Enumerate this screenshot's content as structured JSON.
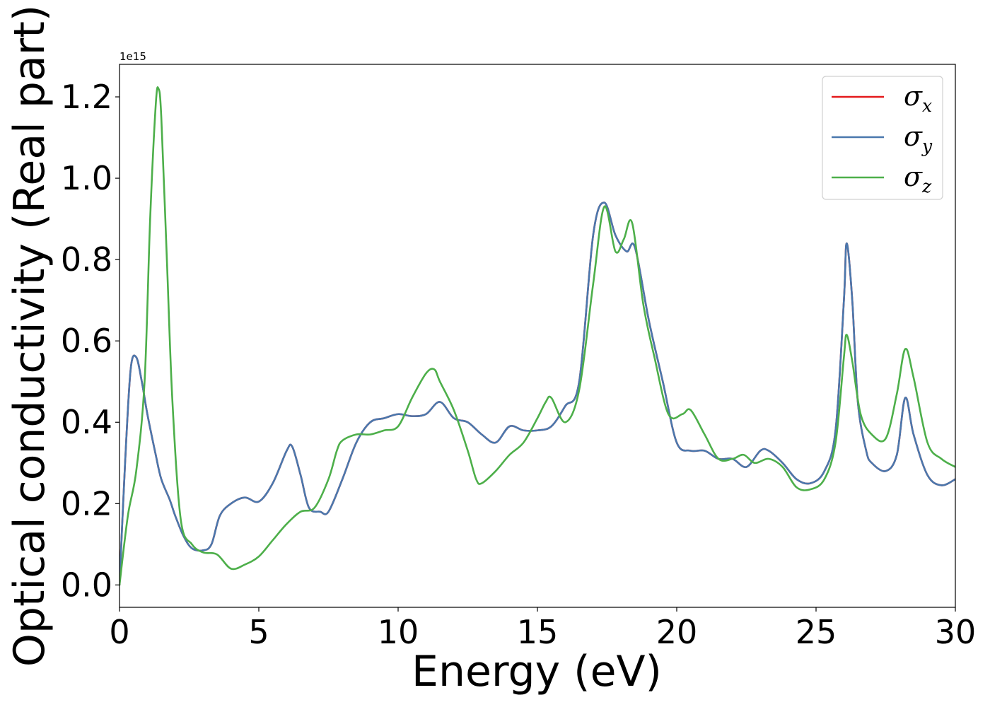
{
  "chart_data": {
    "type": "line",
    "xlabel": "Energy (eV)",
    "ylabel": "Optical conductivity (Real part)",
    "y_offset_label": "1e15",
    "xlim": [
      0,
      30
    ],
    "ylim": [
      -0.055,
      1.28
    ],
    "x_ticks": [
      0,
      5,
      10,
      15,
      20,
      25,
      30
    ],
    "x_tick_labels": [
      "0",
      "5",
      "10",
      "15",
      "20",
      "25",
      "30"
    ],
    "y_ticks": [
      0.0,
      0.2,
      0.4,
      0.6,
      0.8,
      1.0,
      1.2
    ],
    "y_tick_labels": [
      "0.0",
      "0.2",
      "0.4",
      "0.6",
      "0.8",
      "1.0",
      "1.2"
    ],
    "grid": false,
    "legend_position": "top-right",
    "series": [
      {
        "name": "σx",
        "symbol": "σ",
        "subscript": "x",
        "color": "#e41a1c",
        "x": [
          0,
          0.2,
          0.4,
          0.6,
          0.8,
          1.0,
          1.3,
          1.5,
          1.8,
          2.0,
          2.3,
          2.6,
          3.0,
          3.3,
          3.6,
          4.0,
          4.5,
          5.0,
          5.5,
          6.0,
          6.2,
          6.5,
          6.8,
          7.2,
          7.5,
          8.0,
          8.5,
          9.0,
          9.5,
          10.0,
          10.5,
          11.0,
          11.5,
          12.0,
          12.5,
          13.0,
          13.5,
          14.0,
          14.5,
          15.0,
          15.5,
          16.0,
          16.5,
          17.0,
          17.4,
          17.8,
          18.2,
          18.5,
          19.0,
          19.5,
          20.0,
          20.5,
          21.0,
          21.5,
          22.0,
          22.5,
          23.0,
          23.3,
          23.8,
          24.3,
          24.8,
          25.3,
          25.7,
          26.0,
          26.1,
          26.3,
          26.5,
          26.8,
          27.0,
          27.5,
          27.9,
          28.2,
          28.5,
          29.0,
          29.5,
          30.0
        ],
        "y": [
          0.0,
          0.3,
          0.53,
          0.56,
          0.5,
          0.42,
          0.32,
          0.26,
          0.21,
          0.17,
          0.12,
          0.09,
          0.085,
          0.1,
          0.17,
          0.2,
          0.215,
          0.205,
          0.25,
          0.33,
          0.34,
          0.27,
          0.19,
          0.18,
          0.18,
          0.26,
          0.35,
          0.4,
          0.41,
          0.42,
          0.415,
          0.42,
          0.45,
          0.41,
          0.4,
          0.37,
          0.35,
          0.39,
          0.38,
          0.38,
          0.39,
          0.44,
          0.5,
          0.86,
          0.94,
          0.86,
          0.82,
          0.83,
          0.65,
          0.5,
          0.35,
          0.33,
          0.33,
          0.31,
          0.31,
          0.29,
          0.33,
          0.33,
          0.3,
          0.26,
          0.25,
          0.28,
          0.38,
          0.7,
          0.84,
          0.7,
          0.45,
          0.33,
          0.3,
          0.28,
          0.32,
          0.46,
          0.37,
          0.27,
          0.245,
          0.26
        ]
      },
      {
        "name": "σy",
        "symbol": "σ",
        "subscript": "y",
        "color": "#4a78ad",
        "x": [
          0,
          0.2,
          0.4,
          0.6,
          0.8,
          1.0,
          1.3,
          1.5,
          1.8,
          2.0,
          2.3,
          2.6,
          3.0,
          3.3,
          3.6,
          4.0,
          4.5,
          5.0,
          5.5,
          6.0,
          6.2,
          6.5,
          6.8,
          7.2,
          7.5,
          8.0,
          8.5,
          9.0,
          9.5,
          10.0,
          10.5,
          11.0,
          11.5,
          12.0,
          12.5,
          13.0,
          13.5,
          14.0,
          14.5,
          15.0,
          15.5,
          16.0,
          16.5,
          17.0,
          17.4,
          17.8,
          18.2,
          18.5,
          19.0,
          19.5,
          20.0,
          20.5,
          21.0,
          21.5,
          22.0,
          22.5,
          23.0,
          23.3,
          23.8,
          24.3,
          24.8,
          25.3,
          25.7,
          26.0,
          26.1,
          26.3,
          26.5,
          26.8,
          27.0,
          27.5,
          27.9,
          28.2,
          28.5,
          29.0,
          29.5,
          30.0
        ],
        "y": [
          0.0,
          0.3,
          0.53,
          0.56,
          0.5,
          0.42,
          0.32,
          0.26,
          0.21,
          0.17,
          0.12,
          0.09,
          0.085,
          0.1,
          0.17,
          0.2,
          0.215,
          0.205,
          0.25,
          0.33,
          0.34,
          0.27,
          0.19,
          0.18,
          0.18,
          0.26,
          0.35,
          0.4,
          0.41,
          0.42,
          0.415,
          0.42,
          0.45,
          0.41,
          0.4,
          0.37,
          0.35,
          0.39,
          0.38,
          0.38,
          0.39,
          0.44,
          0.5,
          0.86,
          0.94,
          0.86,
          0.82,
          0.83,
          0.65,
          0.5,
          0.35,
          0.33,
          0.33,
          0.31,
          0.31,
          0.29,
          0.33,
          0.33,
          0.3,
          0.26,
          0.25,
          0.28,
          0.38,
          0.7,
          0.84,
          0.7,
          0.45,
          0.33,
          0.3,
          0.28,
          0.32,
          0.46,
          0.37,
          0.27,
          0.245,
          0.26
        ]
      },
      {
        "name": "σz",
        "symbol": "σ",
        "subscript": "z",
        "color": "#4daf4a",
        "x": [
          0,
          0.3,
          0.6,
          0.9,
          1.1,
          1.3,
          1.4,
          1.5,
          1.7,
          1.9,
          2.2,
          2.6,
          3.0,
          3.5,
          4.0,
          4.5,
          5.0,
          5.5,
          6.0,
          6.5,
          7.0,
          7.5,
          7.8,
          8.0,
          8.5,
          9.0,
          9.5,
          10.0,
          10.5,
          11.0,
          11.3,
          11.5,
          12.0,
          12.5,
          12.8,
          13.0,
          13.5,
          14.0,
          14.5,
          15.0,
          15.3,
          15.5,
          16.0,
          16.5,
          17.0,
          17.4,
          17.8,
          18.1,
          18.4,
          18.8,
          19.2,
          19.7,
          20.2,
          20.5,
          21.0,
          21.5,
          22.0,
          22.4,
          22.8,
          23.3,
          23.8,
          24.3,
          24.8,
          25.3,
          25.7,
          26.0,
          26.1,
          26.3,
          26.6,
          27.0,
          27.5,
          27.9,
          28.2,
          28.5,
          29.0,
          29.5,
          30.0
        ],
        "y": [
          0.0,
          0.17,
          0.28,
          0.5,
          0.9,
          1.18,
          1.22,
          1.15,
          0.8,
          0.45,
          0.16,
          0.1,
          0.08,
          0.075,
          0.04,
          0.05,
          0.07,
          0.11,
          0.15,
          0.18,
          0.19,
          0.26,
          0.33,
          0.355,
          0.37,
          0.37,
          0.38,
          0.39,
          0.46,
          0.52,
          0.53,
          0.5,
          0.43,
          0.33,
          0.26,
          0.25,
          0.28,
          0.32,
          0.35,
          0.41,
          0.45,
          0.46,
          0.4,
          0.48,
          0.74,
          0.93,
          0.82,
          0.85,
          0.89,
          0.69,
          0.56,
          0.42,
          0.42,
          0.43,
          0.37,
          0.31,
          0.31,
          0.32,
          0.3,
          0.31,
          0.29,
          0.24,
          0.235,
          0.26,
          0.35,
          0.56,
          0.615,
          0.55,
          0.42,
          0.37,
          0.36,
          0.47,
          0.58,
          0.51,
          0.35,
          0.31,
          0.29
        ]
      }
    ]
  }
}
